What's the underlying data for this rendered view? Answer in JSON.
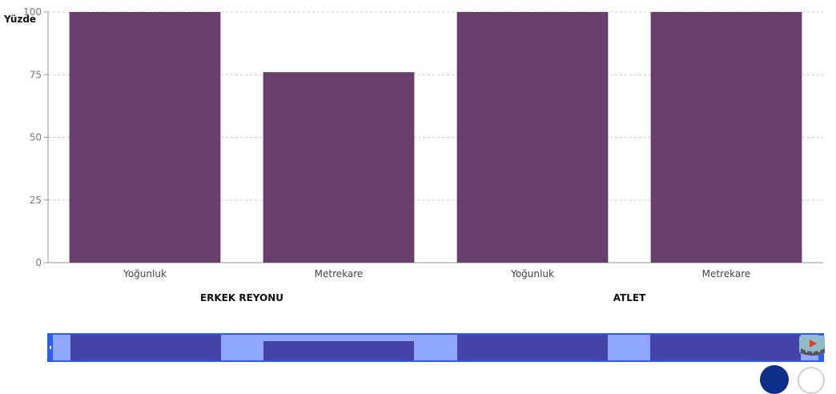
{
  "chart_data": {
    "type": "bar",
    "ylabel": "Yüzde",
    "ylim": [
      0,
      100
    ],
    "yticks": [
      0,
      25,
      50,
      75,
      100
    ],
    "grid": true,
    "categories": [
      "Yoğunluk",
      "Metrekare",
      "Yoğunluk",
      "Metrekare"
    ],
    "groups": [
      {
        "label": "ERKEK REYONU",
        "categories": [
          "Yoğunluk",
          "Metrekare"
        ]
      },
      {
        "label": "ATLET",
        "categories": [
          "Yoğunluk",
          "Metrekare"
        ]
      }
    ],
    "values": [
      100,
      76,
      100,
      100
    ],
    "bar_color": "#683e6c"
  },
  "navigator": {
    "background_color": "#8fa7ff",
    "border_color": "#2a5cff",
    "bar_color": "#4343a8"
  }
}
